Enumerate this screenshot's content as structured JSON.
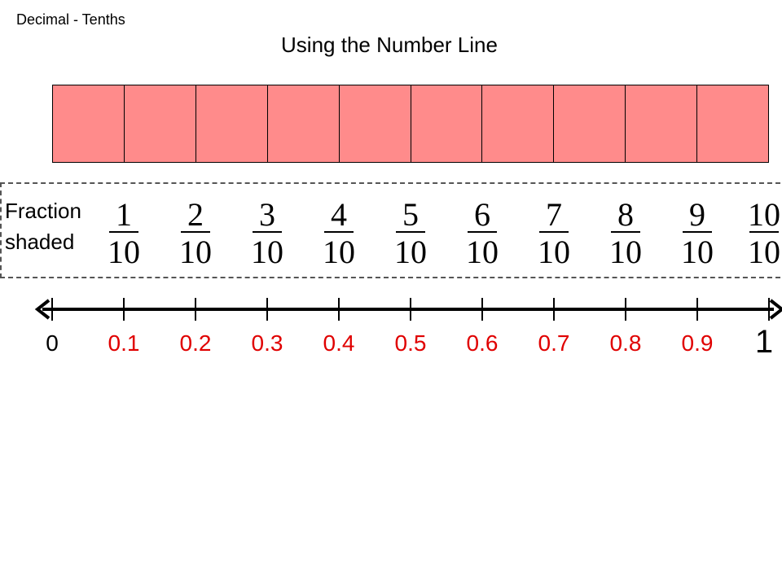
{
  "header": {
    "corner_label": "Decimal - Tenths",
    "title": "Using the Number Line"
  },
  "bar": {
    "cells": 10,
    "shaded_fraction": 1.0,
    "fill_color": "#ff8b8b"
  },
  "fraction_section": {
    "label_line1": "Fraction",
    "label_line2": "shaded",
    "fractions": [
      {
        "num": "1",
        "den": "10"
      },
      {
        "num": "2",
        "den": "10"
      },
      {
        "num": "3",
        "den": "10"
      },
      {
        "num": "4",
        "den": "10"
      },
      {
        "num": "5",
        "den": "10"
      },
      {
        "num": "6",
        "den": "10"
      },
      {
        "num": "7",
        "den": "10"
      },
      {
        "num": "8",
        "den": "10"
      },
      {
        "num": "9",
        "den": "10"
      },
      {
        "num": "10",
        "den": "10"
      }
    ]
  },
  "number_line": {
    "labels": [
      "0",
      "0.1",
      "0.2",
      "0.3",
      "0.4",
      "0.5",
      "0.6",
      "0.7",
      "0.8",
      "0.9",
      "1"
    ],
    "decimal_color": "#e00000",
    "endpoint_color": "#000000"
  }
}
